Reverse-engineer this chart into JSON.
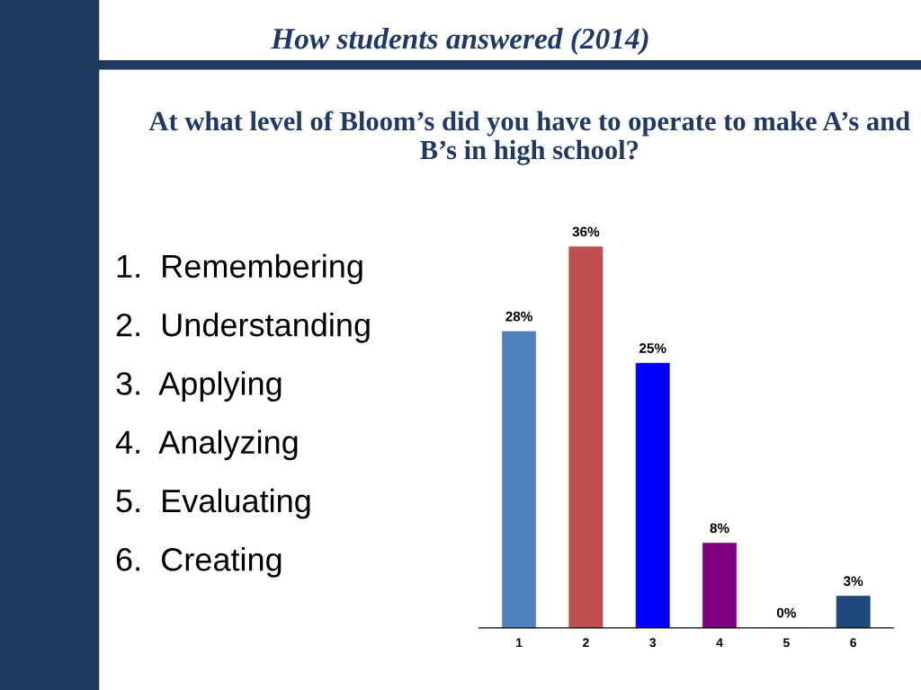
{
  "chart_data": {
    "type": "bar",
    "title": "How students answered (2014)",
    "subtitle": "At what level of Bloom’s did you have to operate to make A’s and B’s in high school?",
    "categories": [
      "1",
      "2",
      "3",
      "4",
      "5",
      "6"
    ],
    "values": [
      28,
      36,
      25,
      8,
      0,
      3
    ],
    "colors": [
      "#4f81bd",
      "#c0504d",
      "#0000ff",
      "#7f007f",
      "#c0c0c0",
      "#1f497d"
    ],
    "value_labels": [
      "28%",
      "36%",
      "25%",
      "8%",
      "0%",
      "3%"
    ],
    "annotations": [
      "1.  Remembering",
      "2.  Understanding",
      "3.  Applying",
      "4.  Analyzing",
      "5.  Evaluating",
      "6.  Creating"
    ],
    "grid": false,
    "legend": false
  }
}
